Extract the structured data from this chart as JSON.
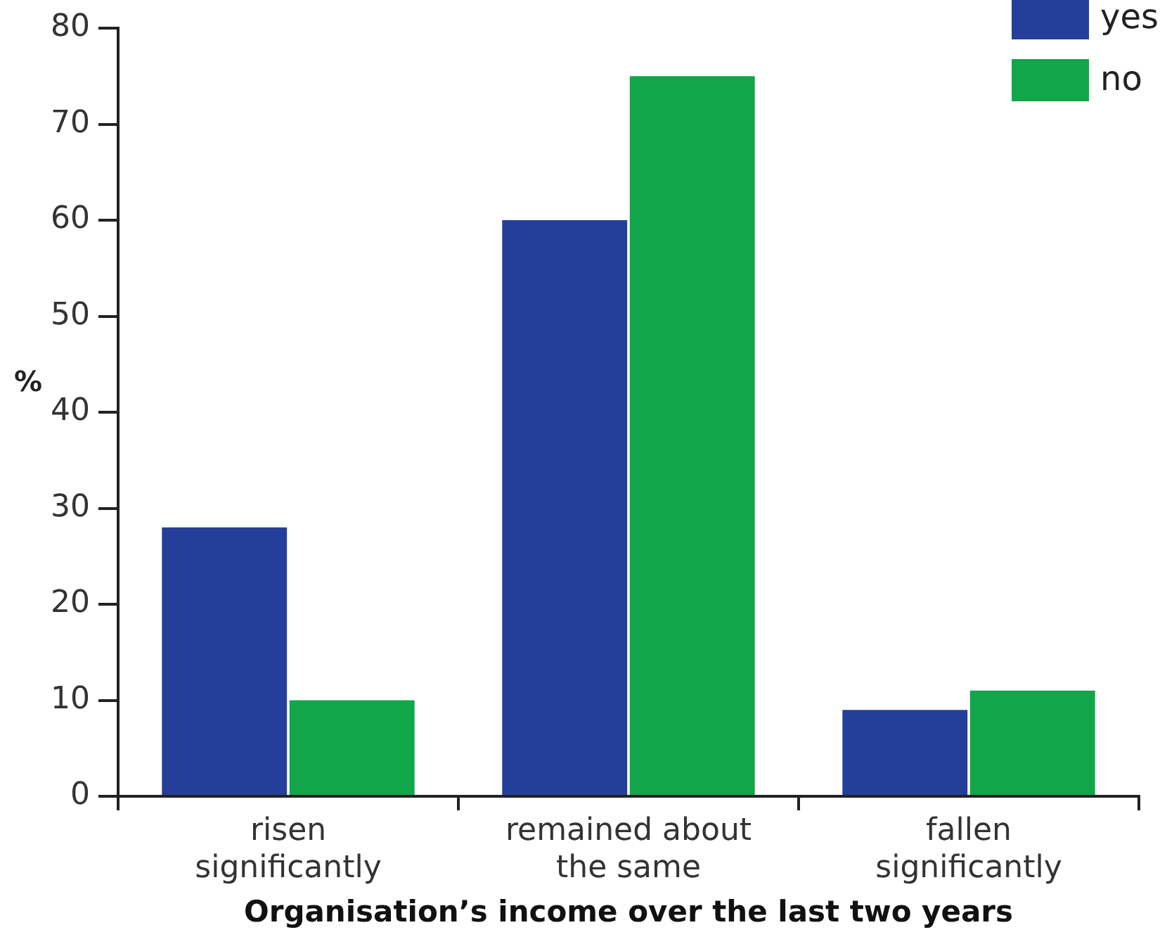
{
  "chart_data": {
    "type": "bar",
    "xlabel": "Organisation’s income over the last two years",
    "ylabel": "%",
    "categories": [
      "risen significantly",
      "remained about the same",
      "fallen significantly"
    ],
    "series": [
      {
        "name": "yes",
        "color": "#233f99",
        "values": [
          28,
          60,
          9
        ]
      },
      {
        "name": "no",
        "color": "#11a64a",
        "values": [
          10,
          75,
          11
        ]
      }
    ],
    "ylim": [
      0,
      80
    ],
    "yticks": [
      0,
      10,
      20,
      30,
      40,
      50,
      60,
      70,
      80
    ],
    "grid": false,
    "legend": "top right"
  }
}
